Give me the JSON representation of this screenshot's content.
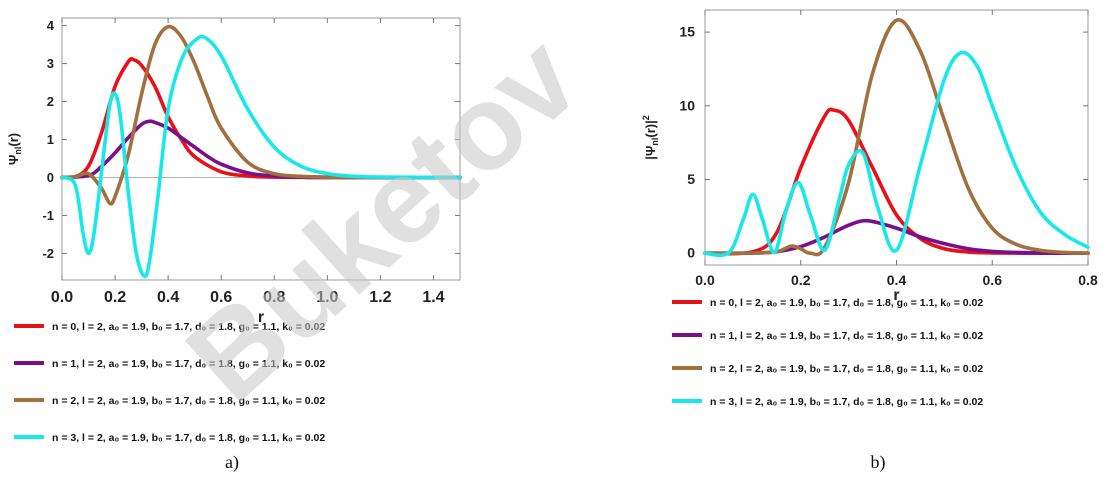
{
  "watermark": "Buketov",
  "chart_data": [
    {
      "type": "line",
      "panel_label": "a)",
      "xlabel": "r",
      "ylabel_main": "Ψ",
      "ylabel_sub": "nl",
      "ylabel_rest": "(r)",
      "xlim": [
        0,
        1.5
      ],
      "ylim": [
        -2.7,
        4.2
      ],
      "xticks": [
        0.0,
        0.2,
        0.4,
        0.6,
        0.8,
        1.0,
        1.2,
        1.4
      ],
      "xtick_labels": [
        "0.0",
        "0.2",
        "0.4",
        "0.6",
        "0.8",
        "1.0",
        "1.2",
        "1.4"
      ],
      "yticks": [
        -2,
        -1,
        0,
        1,
        2,
        3,
        4
      ],
      "ytick_labels": [
        "-2",
        "-1",
        "0",
        "1",
        "2",
        "3",
        "4"
      ],
      "zero_line": true,
      "legend": [
        "n = 0, l = 2, a₀ = 1.9, b₀ = 1.7, d₀ = 1.8, g₀ = 1.1,  k₀ = 0.02",
        "n = 1, l = 2, a₀ = 1.9, b₀ = 1.7, d₀ = 1.8, g₀ = 1.1,  k₀ = 0.02",
        "n = 2, l = 2, a₀ = 1.9, b₀ = 1.7, d₀ = 1.8, g₀ = 1.1,  k₀ = 0.02",
        "n = 3, l = 2, a₀ = 1.9, b₀ = 1.7, d₀ = 1.8, g₀ = 1.1,  k₀ = 0.02"
      ],
      "series": [
        {
          "color": "#e8101a",
          "x": [
            0,
            0.05,
            0.1,
            0.15,
            0.2,
            0.25,
            0.27,
            0.3,
            0.35,
            0.4,
            0.45,
            0.5,
            0.6,
            0.7,
            0.8,
            1.0,
            1.5
          ],
          "y": [
            0,
            0.02,
            0.3,
            1.2,
            2.4,
            3.05,
            3.1,
            2.95,
            2.4,
            1.6,
            1.0,
            0.55,
            0.15,
            0.04,
            0.01,
            0,
            0
          ]
        },
        {
          "color": "#7a0f8c",
          "x": [
            0,
            0.1,
            0.15,
            0.2,
            0.25,
            0.3,
            0.33,
            0.35,
            0.4,
            0.45,
            0.5,
            0.55,
            0.6,
            0.7,
            0.8,
            0.9,
            1.0,
            1.5
          ],
          "y": [
            0,
            0.05,
            0.3,
            0.65,
            1.05,
            1.4,
            1.48,
            1.45,
            1.3,
            1.05,
            0.8,
            0.55,
            0.35,
            0.12,
            0.04,
            0.01,
            0,
            0
          ]
        },
        {
          "color": "#a0703e",
          "x": [
            0,
            0.05,
            0.1,
            0.15,
            0.18,
            0.2,
            0.25,
            0.3,
            0.35,
            0.4,
            0.45,
            0.5,
            0.55,
            0.6,
            0.7,
            0.8,
            0.9,
            1.0,
            1.1,
            1.5
          ],
          "y": [
            0,
            0.02,
            0.1,
            -0.3,
            -0.68,
            -0.5,
            0.6,
            2.2,
            3.5,
            3.97,
            3.7,
            3.0,
            2.1,
            1.3,
            0.4,
            0.1,
            0.03,
            0.01,
            0,
            0
          ]
        },
        {
          "color": "#19e8e8",
          "x": [
            0,
            0.05,
            0.08,
            0.1,
            0.12,
            0.15,
            0.18,
            0.2,
            0.22,
            0.25,
            0.28,
            0.31,
            0.33,
            0.36,
            0.4,
            0.45,
            0.5,
            0.54,
            0.6,
            0.7,
            0.8,
            0.9,
            1.0,
            1.1,
            1.2,
            1.5
          ],
          "y": [
            0,
            -0.2,
            -1.5,
            -2.0,
            -1.5,
            0.2,
            1.9,
            2.2,
            1.6,
            -0.4,
            -2.0,
            -2.6,
            -2.2,
            -0.6,
            1.8,
            3.1,
            3.6,
            3.68,
            3.2,
            1.8,
            0.8,
            0.3,
            0.1,
            0.03,
            0.01,
            0
          ]
        }
      ]
    },
    {
      "type": "line",
      "panel_label": "b)",
      "xlabel": "r",
      "ylabel_main": "|Ψ",
      "ylabel_sub": "nl",
      "ylabel_rest": "(r)|",
      "ylabel_sup": "2",
      "xlim": [
        0,
        0.8
      ],
      "ylim": [
        -0.8,
        16.5
      ],
      "xticks": [
        0.0,
        0.2,
        0.4,
        0.6,
        0.8
      ],
      "xtick_labels": [
        "0.0",
        "0.2",
        "0.4",
        "0.6",
        "0.8"
      ],
      "yticks": [
        0,
        5,
        10,
        15
      ],
      "ytick_labels": [
        "0",
        "5",
        "10",
        "15"
      ],
      "zero_line": false,
      "legend": [
        "n = 0, l = 2, a₀ = 1.9, b₀ = 1.7, d₀ = 1.8, g₀ = 1.1,  k₀ = 0.02",
        "n = 1, l = 2, a₀ = 1.9, b₀ = 1.7, d₀ = 1.8, g₀ = 1.1,  k₀ = 0.02",
        "n = 2, l = 2, a₀ = 1.9, b₀ = 1.7, d₀ = 1.8, g₀ = 1.1,  k₀ = 0.02",
        "n = 3, l = 2, a₀ = 1.9, b₀ = 1.7, d₀ = 1.8, g₀ = 1.1,  k₀ = 0.02"
      ],
      "series": [
        {
          "color": "#e8101a",
          "x": [
            0,
            0.1,
            0.15,
            0.2,
            0.25,
            0.27,
            0.3,
            0.35,
            0.4,
            0.45,
            0.5,
            0.55,
            0.6,
            0.7,
            0.8
          ],
          "y": [
            0,
            0.1,
            1.4,
            5.8,
            9.3,
            9.7,
            9.0,
            5.8,
            2.6,
            1.0,
            0.3,
            0.08,
            0.02,
            0,
            0
          ]
        },
        {
          "color": "#7a0f8c",
          "x": [
            0,
            0.1,
            0.15,
            0.2,
            0.25,
            0.3,
            0.34,
            0.4,
            0.45,
            0.5,
            0.55,
            0.6,
            0.65,
            0.7,
            0.8
          ],
          "y": [
            0,
            0.01,
            0.1,
            0.45,
            1.1,
            1.9,
            2.2,
            1.7,
            1.1,
            0.65,
            0.3,
            0.12,
            0.05,
            0.02,
            0
          ]
        },
        {
          "color": "#a0703e",
          "x": [
            0,
            0.1,
            0.15,
            0.18,
            0.2,
            0.22,
            0.25,
            0.3,
            0.35,
            0.4,
            0.45,
            0.5,
            0.55,
            0.6,
            0.65,
            0.7,
            0.75,
            0.8
          ],
          "y": [
            0,
            0.01,
            0.1,
            0.48,
            0.3,
            0.0,
            0.4,
            4.8,
            12.2,
            15.8,
            13.7,
            9.0,
            4.4,
            1.7,
            0.6,
            0.2,
            0.05,
            0
          ]
        },
        {
          "color": "#19e8e8",
          "x": [
            0,
            0.05,
            0.08,
            0.1,
            0.12,
            0.145,
            0.17,
            0.195,
            0.22,
            0.25,
            0.28,
            0.3,
            0.33,
            0.36,
            0.4,
            0.45,
            0.5,
            0.535,
            0.57,
            0.6,
            0.65,
            0.7,
            0.75,
            0.8
          ],
          "y": [
            0,
            0.04,
            2.3,
            4.0,
            2.3,
            0.05,
            3.0,
            4.8,
            2.6,
            0.2,
            3.6,
            6.0,
            6.8,
            3.2,
            0.2,
            6.0,
            11.8,
            13.6,
            12.6,
            10.0,
            5.8,
            2.8,
            1.3,
            0.4
          ]
        }
      ]
    }
  ]
}
